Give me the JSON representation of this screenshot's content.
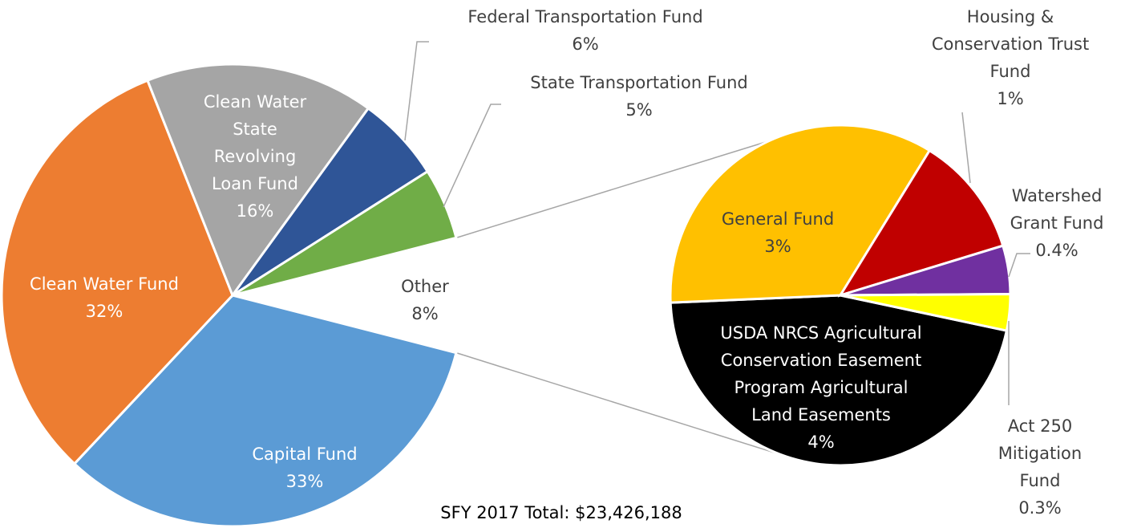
{
  "chart_data": [
    {
      "type": "pie",
      "categories": [
        "Capital Fund",
        "Clean Water Fund",
        "Clean Water State Revolving Loan Fund",
        "Federal Transportation Fund",
        "State Transportation Fund",
        "Other"
      ],
      "values": [
        33,
        32,
        16,
        6,
        5,
        8
      ],
      "value_labels": [
        "33%",
        "32%",
        "16%",
        "6%",
        "5%",
        "8%"
      ],
      "colors": [
        "#5b9bd5",
        "#ed7d31",
        "#a5a5a5",
        "#2f5597",
        "#70ad47",
        "none"
      ],
      "annotation": "SFY 2017 Total: $23,426,188"
    },
    {
      "type": "pie",
      "categories": [
        "USDA NRCS Agricultural Conservation Easement Program Agricultural Land Easements",
        "General Fund",
        "Housing & Conservation Trust Fund",
        "Watershed Grant Fund",
        "Act 250 Mitigation Fund"
      ],
      "values": [
        4,
        3,
        1,
        0.4,
        0.3
      ],
      "value_labels": [
        "4%",
        "3%",
        "1%",
        "0.4%",
        "0.3%"
      ],
      "colors": [
        "#000000",
        "#ffc000",
        "#c00000",
        "#7030a0",
        "#ffff00"
      ]
    }
  ]
}
